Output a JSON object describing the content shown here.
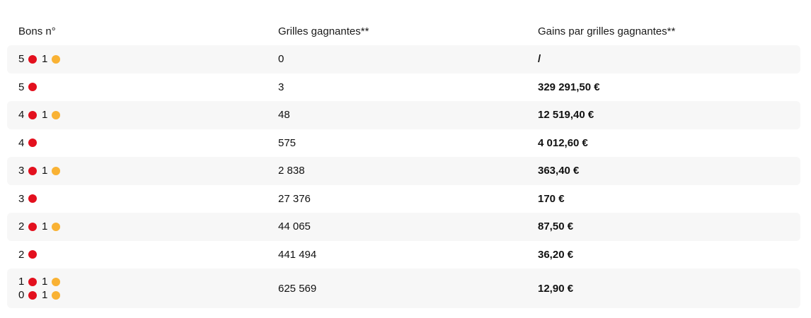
{
  "colors": {
    "ball": "#e3101e",
    "star": "#f9b234",
    "row_shade": "#f7f7f7"
  },
  "headers": {
    "bons": "Bons n°",
    "grilles": "Grilles gagnantes**",
    "gains": "Gains par grilles gagnantes**"
  },
  "rows": [
    {
      "combos": [
        {
          "balls": "5",
          "stars": "1"
        }
      ],
      "grilles": "0",
      "gain": "/"
    },
    {
      "combos": [
        {
          "balls": "5",
          "stars": ""
        }
      ],
      "grilles": "3",
      "gain": "329 291,50 €"
    },
    {
      "combos": [
        {
          "balls": "4",
          "stars": "1"
        }
      ],
      "grilles": "48",
      "gain": "12 519,40 €"
    },
    {
      "combos": [
        {
          "balls": "4",
          "stars": ""
        }
      ],
      "grilles": "575",
      "gain": "4 012,60 €"
    },
    {
      "combos": [
        {
          "balls": "3",
          "stars": "1"
        }
      ],
      "grilles": "2 838",
      "gain": "363,40 €"
    },
    {
      "combos": [
        {
          "balls": "3",
          "stars": ""
        }
      ],
      "grilles": "27 376",
      "gain": "170 €"
    },
    {
      "combos": [
        {
          "balls": "2",
          "stars": "1"
        }
      ],
      "grilles": "44 065",
      "gain": "87,50 €"
    },
    {
      "combos": [
        {
          "balls": "2",
          "stars": ""
        }
      ],
      "grilles": "441 494",
      "gain": "36,20 €"
    },
    {
      "combos": [
        {
          "balls": "1",
          "stars": "1"
        },
        {
          "balls": "0",
          "stars": "1"
        }
      ],
      "grilles": "625 569",
      "gain": "12,90 €"
    }
  ]
}
